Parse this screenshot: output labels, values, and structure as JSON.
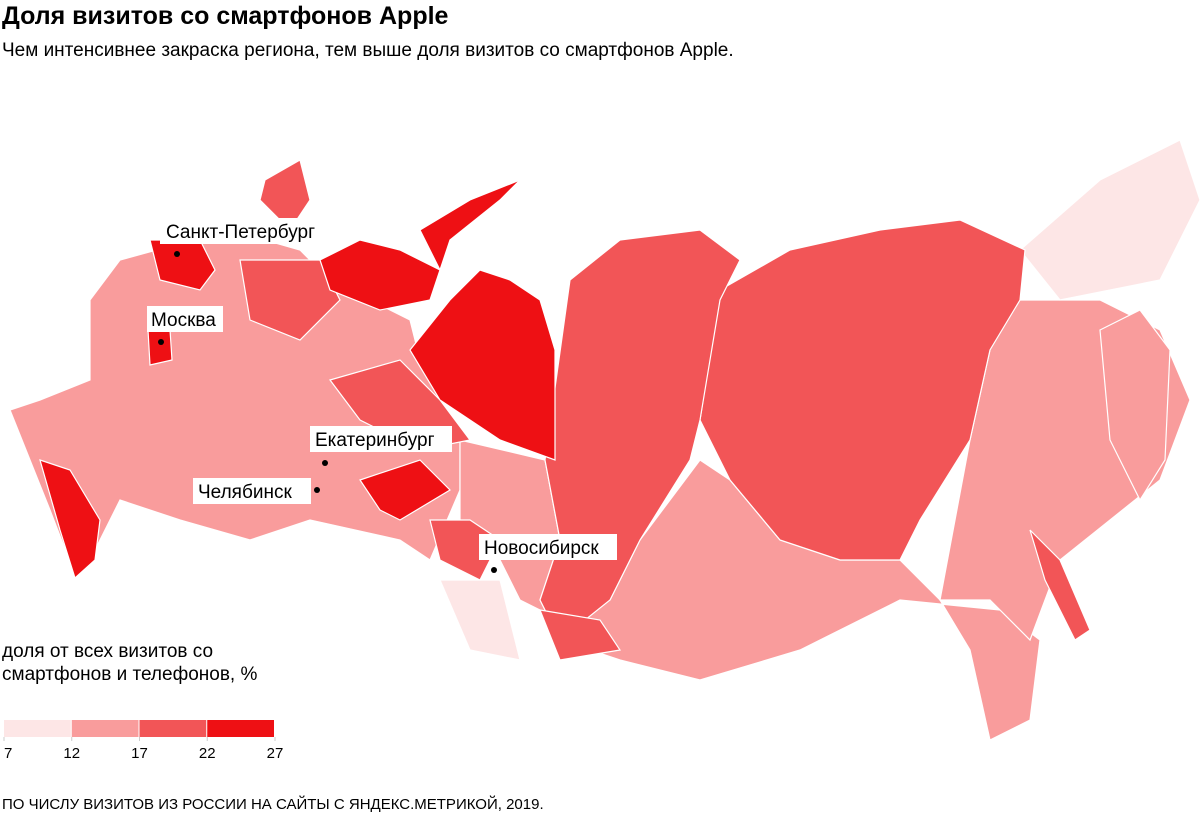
{
  "header": {
    "title": "Доля визитов со смартфонов Apple",
    "subtitle": "Чем интенсивнее закраска региона, тем выше доля визитов со смартфонов Apple."
  },
  "map": {
    "cities": [
      "Санкт-Петербург",
      "Москва",
      "Екатеринбург",
      "Челябинск",
      "Новосибирск"
    ]
  },
  "legend": {
    "title": "доля от всех визитов со смартфонов и телефонов, %",
    "bins": [
      7,
      12,
      17,
      22,
      27
    ],
    "colors": [
      "#fde6e6",
      "#f99c9c",
      "#f25557",
      "#ee1014"
    ]
  },
  "footer": "ПО ЧИСЛУ ВИЗИТОВ ИЗ РОССИИ НА САЙТЫ С ЯНДЕКС.МЕТРИКОЙ, 2019."
}
